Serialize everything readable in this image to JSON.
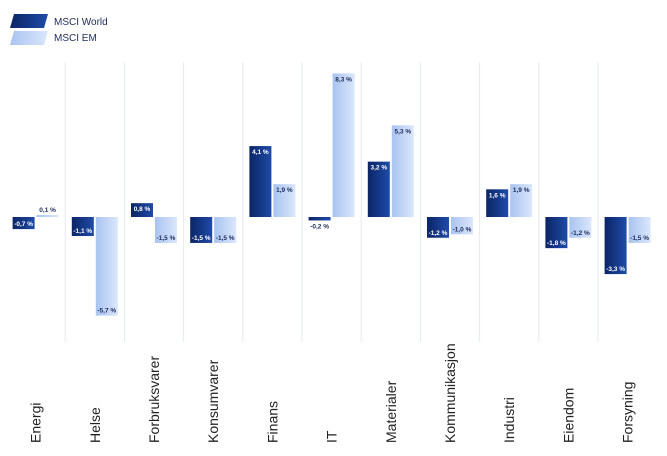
{
  "colors": {
    "world_dark": "#0b2566",
    "world_light": "#1f4ba8",
    "em_dark": "#a9c3f0",
    "em_light": "#dbe7fb",
    "divider": "#e6e9ef",
    "text": "#1d2b5c"
  },
  "chart_data": {
    "type": "bar",
    "categories": [
      "Energi",
      "Helse",
      "Forbruksvarer",
      "Konsumvarer",
      "Finans",
      "IT",
      "Materialer",
      "Kommunikasjon",
      "Industri",
      "Eiendom",
      "Forsyning"
    ],
    "series": [
      {
        "name": "MSCI World",
        "values": [
          -0.7,
          -1.1,
          0.8,
          -1.5,
          4.1,
          -0.2,
          3.2,
          -1.2,
          1.6,
          -1.8,
          -3.3
        ],
        "labels": [
          "-0,7 %",
          "-1,1 %",
          "0,8 %",
          "-1,5 %",
          "4,1 %",
          "-0,2 %",
          "3,2 %",
          "-1,2 %",
          "1,6 %",
          "-1,8 %",
          "-3,3 %"
        ]
      },
      {
        "name": "MSCI EM",
        "values": [
          0.1,
          -5.7,
          -1.5,
          -1.5,
          1.9,
          8.3,
          5.3,
          -1.0,
          1.9,
          -1.2,
          -1.5
        ],
        "labels": [
          "0,1 %",
          "-5,7 %",
          "-1,5 %",
          "-1,5 %",
          "1,9 %",
          "8,3 %",
          "5,3 %",
          "-1,0 %",
          "1,9 %",
          "-1,2 %",
          "-1,5 %"
        ]
      }
    ],
    "title": "",
    "xlabel": "",
    "ylabel": "",
    "ylim": [
      -6,
      9
    ],
    "grid": false,
    "legend": "top-left"
  }
}
